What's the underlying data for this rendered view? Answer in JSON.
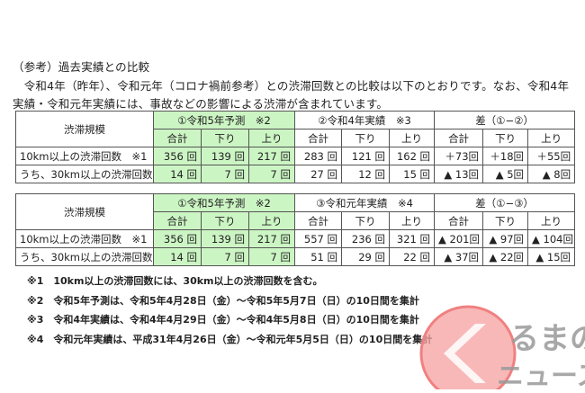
{
  "heading": "（参考）過去実績との比較",
  "paragraph": [
    "　令和4年（昨年）、令和元年（コロナ禍前参考）との渋滞回数との比較は以下のとおりです。なお、令和4年",
    "実績・令和元年実績には、事故などの影響による渋滞が含まれています。"
  ],
  "tables": [
    {
      "corner": "渋滞規模",
      "groups": [
        "①令和5年予測　※2",
        "②令和4年実績　※3",
        "差（①−②）"
      ],
      "subheaders": [
        "合計",
        "下り",
        "上り",
        "合計",
        "下り",
        "上り",
        "合計",
        "下り",
        "上り"
      ],
      "rows": [
        {
          "label": "10km以上の渋滞回数　※1",
          "cells": [
            "356 回",
            "139 回",
            "217 回",
            "283 回",
            "121 回",
            "162 回",
            "＋73回",
            "＋18回",
            "＋55回"
          ]
        },
        {
          "label": "うち、30km以上の渋滞回数",
          "cells": [
            "14 回",
            "7 回",
            "7 回",
            "27 回",
            "12 回",
            "15 回",
            "▲ 13回",
            "▲ 5回",
            "▲ 8回"
          ]
        }
      ]
    },
    {
      "corner": "渋滞規模",
      "groups": [
        "①令和5年予測　※2",
        "③令和元年実績　※4",
        "差（①−③）"
      ],
      "subheaders": [
        "合計",
        "下り",
        "上り",
        "合計",
        "下り",
        "上り",
        "合計",
        "下り",
        "上り"
      ],
      "rows": [
        {
          "label": "10km以上の渋滞回数　※1",
          "cells": [
            "356 回",
            "139 回",
            "217 回",
            "557 回",
            "236 回",
            "321 回",
            "▲ 201回",
            "▲ 97回",
            "▲ 104回"
          ]
        },
        {
          "label": "うち、30km以上の渋滞回数",
          "cells": [
            "14 回",
            "7 回",
            "7 回",
            "51 回",
            "29 回",
            "22 回",
            "▲ 37回",
            "▲ 22回",
            "▲ 15回"
          ]
        }
      ]
    }
  ],
  "footnotes": [
    "※1　10km以上の渋滞回数には、30km以上の渋滞回数を含む。",
    "※2　令和5年予測は、令和5年4月28日（金）～令和5年5月7日（日）の10日間を集計",
    "※3　令和4年実績は、令和4年4月29日（金）～令和4年5月8日（日）の10日間を集計",
    "※4　令和元年実績は、平成31年4月26日（金）～令和元年5月5日（日）の10日間を集計"
  ],
  "logo": {
    "text_top": "るまの",
    "text_bottom": "ニュース",
    "color": "#f08080"
  },
  "colors": {
    "highlight": "#ccf5c4"
  }
}
